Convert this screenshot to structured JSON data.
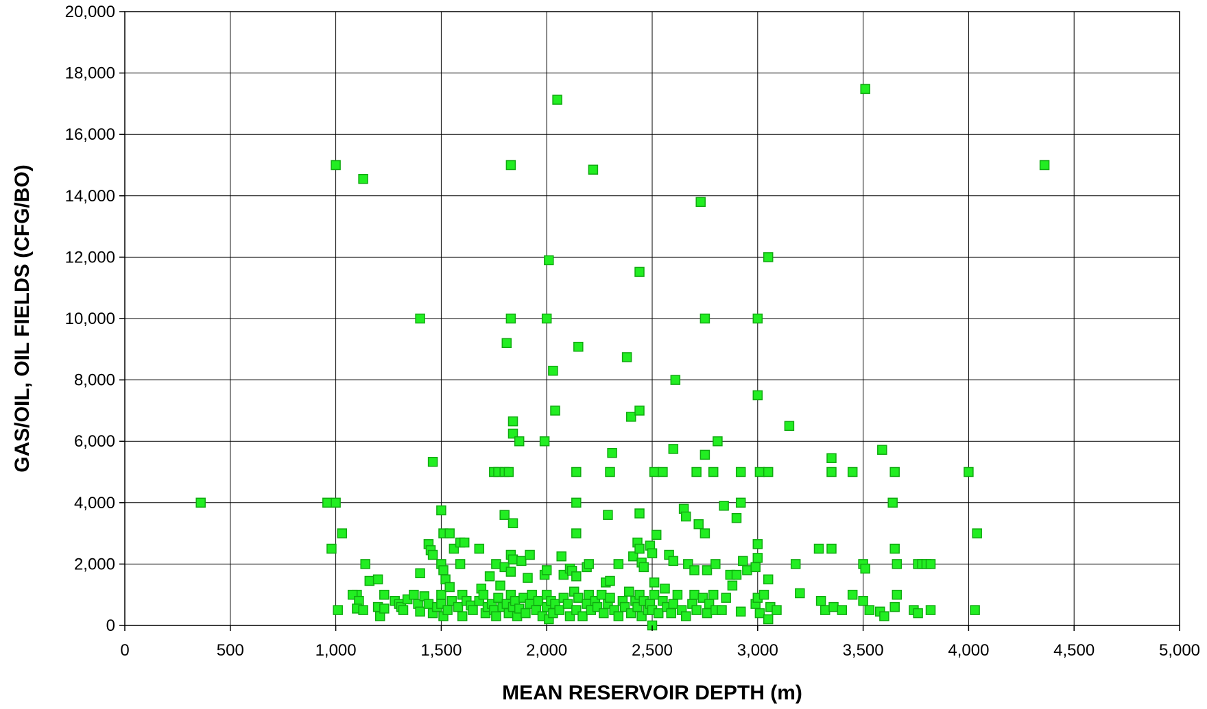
{
  "chart_data": {
    "type": "scatter",
    "xlabel": "MEAN RESERVOIR DEPTH (m)",
    "ylabel": "GAS/OIL, OIL FIELDS (CFG/BO)",
    "xlim": [
      0,
      5000
    ],
    "ylim": [
      0,
      20000
    ],
    "x_ticks": [
      0,
      500,
      1000,
      1500,
      2000,
      2500,
      3000,
      3500,
      4000,
      4500,
      5000
    ],
    "x_tick_labels": [
      "0",
      "500",
      "1,000",
      "1,500",
      "2,000",
      "2,500",
      "3,000",
      "3,500",
      "4,000",
      "4,500",
      "5,000"
    ],
    "y_ticks": [
      0,
      2000,
      4000,
      6000,
      8000,
      10000,
      12000,
      14000,
      16000,
      18000,
      20000
    ],
    "y_tick_labels": [
      "0",
      "2,000",
      "4,000",
      "6,000",
      "8,000",
      "10,000",
      "12,000",
      "14,000",
      "16,000",
      "18,000",
      "20,000"
    ],
    "grid": true,
    "legend": "none",
    "marker_color": "#22ee22",
    "marker_edge_color": "#11aa11",
    "grid_color": "#000000",
    "points": [
      [
        360,
        4000
      ],
      [
        960,
        4000
      ],
      [
        980,
        2500
      ],
      [
        1000,
        15000
      ],
      [
        1000,
        4000
      ],
      [
        1010,
        500
      ],
      [
        1030,
        3000
      ],
      [
        1130,
        14550
      ],
      [
        1400,
        10000
      ],
      [
        1460,
        5330
      ],
      [
        1830,
        15000
      ],
      [
        2050,
        17130
      ],
      [
        2220,
        14850
      ],
      [
        2730,
        13800
      ],
      [
        3510,
        17480
      ],
      [
        4360,
        15000
      ],
      [
        1830,
        10000
      ],
      [
        2000,
        10000
      ],
      [
        2010,
        11900
      ],
      [
        1810,
        9200
      ],
      [
        2150,
        9080
      ],
      [
        2440,
        11520
      ],
      [
        2750,
        10000
      ],
      [
        3000,
        10000
      ],
      [
        3050,
        12000
      ],
      [
        2030,
        8300
      ],
      [
        2380,
        8740
      ],
      [
        2610,
        8000
      ],
      [
        3000,
        7500
      ],
      [
        1840,
        6650
      ],
      [
        1840,
        6250
      ],
      [
        1870,
        6000
      ],
      [
        1990,
        6000
      ],
      [
        2040,
        7000
      ],
      [
        2400,
        6800
      ],
      [
        2440,
        7000
      ],
      [
        2600,
        5750
      ],
      [
        2750,
        5560
      ],
      [
        2810,
        6000
      ],
      [
        3150,
        6500
      ],
      [
        1750,
        5000
      ],
      [
        1770,
        5000
      ],
      [
        1800,
        5000
      ],
      [
        1820,
        5000
      ],
      [
        2140,
        5000
      ],
      [
        2300,
        5000
      ],
      [
        2310,
        5620
      ],
      [
        2510,
        5000
      ],
      [
        2550,
        5000
      ],
      [
        2710,
        5000
      ],
      [
        2790,
        5000
      ],
      [
        2920,
        5000
      ],
      [
        3010,
        5000
      ],
      [
        3050,
        5000
      ],
      [
        3350,
        5450
      ],
      [
        3350,
        5000
      ],
      [
        3450,
        5000
      ],
      [
        3590,
        5720
      ],
      [
        3650,
        5000
      ],
      [
        4000,
        5000
      ],
      [
        1500,
        3750
      ],
      [
        1800,
        3600
      ],
      [
        1840,
        3330
      ],
      [
        2140,
        4000
      ],
      [
        2290,
        3600
      ],
      [
        2440,
        3650
      ],
      [
        2650,
        3800
      ],
      [
        2660,
        3550
      ],
      [
        2720,
        3300
      ],
      [
        2750,
        3000
      ],
      [
        2840,
        3900
      ],
      [
        2900,
        3500
      ],
      [
        2920,
        4000
      ],
      [
        3640,
        4000
      ],
      [
        4040,
        3000
      ],
      [
        2140,
        3000
      ],
      [
        2520,
        2950
      ],
      [
        3000,
        2650
      ],
      [
        1510,
        3000
      ],
      [
        1540,
        3000
      ],
      [
        1440,
        2650
      ],
      [
        1450,
        2450
      ],
      [
        1460,
        2300
      ],
      [
        1400,
        1700
      ],
      [
        1500,
        2000
      ],
      [
        1510,
        1800
      ],
      [
        1520,
        1500
      ],
      [
        1560,
        2500
      ],
      [
        1590,
        2700
      ],
      [
        1610,
        2700
      ],
      [
        1590,
        2000
      ],
      [
        1680,
        2500
      ],
      [
        1730,
        1600
      ],
      [
        1760,
        2000
      ],
      [
        1800,
        1900
      ],
      [
        1830,
        2300
      ],
      [
        1840,
        2150
      ],
      [
        1830,
        1750
      ],
      [
        1880,
        2100
      ],
      [
        1910,
        1550
      ],
      [
        1920,
        2300
      ],
      [
        1990,
        1650
      ],
      [
        2000,
        1800
      ],
      [
        2070,
        2250
      ],
      [
        2080,
        1650
      ],
      [
        2110,
        1850
      ],
      [
        2120,
        1780
      ],
      [
        2140,
        1600
      ],
      [
        2190,
        1900
      ],
      [
        2200,
        2000
      ],
      [
        2280,
        1400
      ],
      [
        2300,
        1450
      ],
      [
        2340,
        2000
      ],
      [
        2410,
        2250
      ],
      [
        2430,
        2700
      ],
      [
        2440,
        2500
      ],
      [
        2450,
        2050
      ],
      [
        2460,
        1900
      ],
      [
        2490,
        2600
      ],
      [
        2500,
        2350
      ],
      [
        2510,
        1400
      ],
      [
        2580,
        2300
      ],
      [
        2600,
        2100
      ],
      [
        2670,
        2000
      ],
      [
        2700,
        1800
      ],
      [
        2760,
        1800
      ],
      [
        2800,
        2000
      ],
      [
        2870,
        1650
      ],
      [
        2900,
        1650
      ],
      [
        2930,
        2100
      ],
      [
        2950,
        1800
      ],
      [
        2990,
        1900
      ],
      [
        3000,
        2200
      ],
      [
        3050,
        1500
      ],
      [
        3180,
        2000
      ],
      [
        3290,
        2500
      ],
      [
        3350,
        2500
      ],
      [
        3500,
        2000
      ],
      [
        3510,
        1850
      ],
      [
        3650,
        2500
      ],
      [
        3660,
        2000
      ],
      [
        3760,
        2000
      ],
      [
        3780,
        2000
      ],
      [
        3800,
        2000
      ],
      [
        3820,
        2000
      ],
      [
        1140,
        2000
      ],
      [
        1160,
        1450
      ],
      [
        1200,
        1500
      ],
      [
        1230,
        1000
      ],
      [
        1100,
        1000
      ],
      [
        1080,
        1000
      ],
      [
        1110,
        800
      ],
      [
        1100,
        550
      ],
      [
        1130,
        500
      ],
      [
        1200,
        600
      ],
      [
        1210,
        300
      ],
      [
        1230,
        550
      ],
      [
        1280,
        800
      ],
      [
        1300,
        700
      ],
      [
        1310,
        600
      ],
      [
        1320,
        500
      ],
      [
        1340,
        850
      ],
      [
        1370,
        1000
      ],
      [
        1390,
        700
      ],
      [
        1400,
        450
      ],
      [
        1420,
        950
      ],
      [
        1440,
        700
      ],
      [
        1460,
        400
      ],
      [
        1480,
        600
      ],
      [
        1500,
        1000
      ],
      [
        1500,
        700
      ],
      [
        1510,
        300
      ],
      [
        1530,
        500
      ],
      [
        1540,
        1250
      ],
      [
        1550,
        800
      ],
      [
        1580,
        600
      ],
      [
        1600,
        300
      ],
      [
        1600,
        1000
      ],
      [
        1620,
        800
      ],
      [
        1640,
        650
      ],
      [
        1650,
        500
      ],
      [
        1680,
        800
      ],
      [
        1690,
        1200
      ],
      [
        1700,
        1000
      ],
      [
        1710,
        400
      ],
      [
        1720,
        600
      ],
      [
        1740,
        700
      ],
      [
        1750,
        500
      ],
      [
        1760,
        300
      ],
      [
        1770,
        900
      ],
      [
        1780,
        1300
      ],
      [
        1790,
        600
      ],
      [
        1810,
        700
      ],
      [
        1820,
        400
      ],
      [
        1830,
        1000
      ],
      [
        1840,
        600
      ],
      [
        1850,
        800
      ],
      [
        1860,
        300
      ],
      [
        1870,
        550
      ],
      [
        1890,
        900
      ],
      [
        1900,
        400
      ],
      [
        1920,
        700
      ],
      [
        1930,
        1000
      ],
      [
        1950,
        500
      ],
      [
        1960,
        800
      ],
      [
        1980,
        300
      ],
      [
        2000,
        1000
      ],
      [
        2000,
        600
      ],
      [
        2010,
        200
      ],
      [
        2020,
        800
      ],
      [
        2030,
        400
      ],
      [
        2040,
        700
      ],
      [
        2060,
        500
      ],
      [
        2080,
        900
      ],
      [
        2100,
        700
      ],
      [
        2110,
        300
      ],
      [
        2130,
        1100
      ],
      [
        2140,
        500
      ],
      [
        2150,
        900
      ],
      [
        2170,
        300
      ],
      [
        2190,
        700
      ],
      [
        2200,
        1000
      ],
      [
        2210,
        500
      ],
      [
        2230,
        800
      ],
      [
        2240,
        600
      ],
      [
        2260,
        1000
      ],
      [
        2270,
        400
      ],
      [
        2290,
        700
      ],
      [
        2300,
        900
      ],
      [
        2320,
        500
      ],
      [
        2340,
        300
      ],
      [
        2360,
        800
      ],
      [
        2370,
        600
      ],
      [
        2390,
        1100
      ],
      [
        2400,
        400
      ],
      [
        2420,
        800
      ],
      [
        2430,
        600
      ],
      [
        2440,
        1000
      ],
      [
        2450,
        300
      ],
      [
        2460,
        800
      ],
      [
        2480,
        500
      ],
      [
        2490,
        700
      ],
      [
        2500,
        0
      ],
      [
        2500,
        500
      ],
      [
        2510,
        1000
      ],
      [
        2530,
        400
      ],
      [
        2550,
        800
      ],
      [
        2560,
        1200
      ],
      [
        2570,
        600
      ],
      [
        2590,
        400
      ],
      [
        2600,
        700
      ],
      [
        2620,
        1000
      ],
      [
        2640,
        500
      ],
      [
        2660,
        300
      ],
      [
        2690,
        700
      ],
      [
        2700,
        1000
      ],
      [
        2710,
        500
      ],
      [
        2740,
        900
      ],
      [
        2760,
        400
      ],
      [
        2770,
        700
      ],
      [
        2790,
        1000
      ],
      [
        2800,
        500
      ],
      [
        2830,
        500
      ],
      [
        2850,
        900
      ],
      [
        2880,
        1300
      ],
      [
        2920,
        450
      ],
      [
        2990,
        700
      ],
      [
        3000,
        900
      ],
      [
        3010,
        400
      ],
      [
        3030,
        1000
      ],
      [
        3050,
        200
      ],
      [
        3060,
        600
      ],
      [
        3090,
        500
      ],
      [
        3200,
        1050
      ],
      [
        3300,
        800
      ],
      [
        3320,
        500
      ],
      [
        3360,
        600
      ],
      [
        3400,
        500
      ],
      [
        3450,
        1000
      ],
      [
        3500,
        800
      ],
      [
        3530,
        500
      ],
      [
        3580,
        450
      ],
      [
        3600,
        300
      ],
      [
        3650,
        600
      ],
      [
        3660,
        1000
      ],
      [
        3740,
        500
      ],
      [
        3760,
        400
      ],
      [
        3820,
        500
      ],
      [
        4030,
        500
      ]
    ]
  }
}
